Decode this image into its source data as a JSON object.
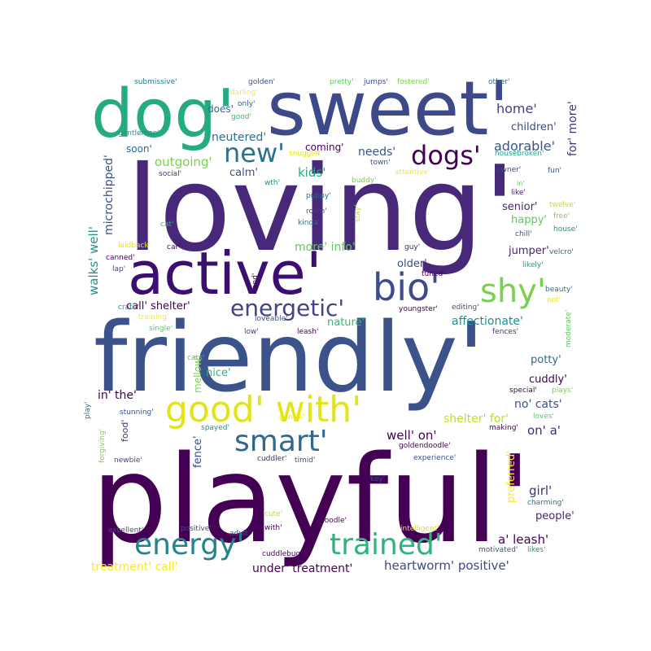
{
  "words": [
    {
      "text": "playful'",
      "color": "#440154"
    },
    {
      "text": "friendly'",
      "color": "#3b528b"
    },
    {
      "text": "loving'",
      "color": "#482878"
    },
    {
      "text": "sweet'",
      "color": "#3e4989"
    },
    {
      "text": "dog'",
      "color": "#25ab82"
    },
    {
      "text": "active'",
      "color": "#3b0f70"
    },
    {
      "text": "bio'",
      "color": "#3e4a89"
    },
    {
      "text": "shy'",
      "color": "#7ad151"
    },
    {
      "text": "good' with'",
      "color": "#e3e418"
    },
    {
      "text": "smart'",
      "color": "#31688e"
    },
    {
      "text": "energy'",
      "color": "#26828e"
    },
    {
      "text": "trained'",
      "color": "#2fb47c"
    },
    {
      "text": "energetic'",
      "color": "#414487"
    },
    {
      "text": "new'",
      "color": "#2c728e"
    },
    {
      "text": "dogs'",
      "color": "#440154"
    },
    {
      "text": "adorable'",
      "color": "#3b528b"
    },
    {
      "text": "home'",
      "color": "#424086"
    },
    {
      "text": "for' more'",
      "color": "#46327e"
    },
    {
      "text": "children'",
      "color": "#3e4989"
    },
    {
      "text": "outgoing'",
      "color": "#7ad151"
    },
    {
      "text": "neutered'",
      "color": "#2c728e"
    },
    {
      "text": "coming'",
      "color": "#440154"
    },
    {
      "text": "needs'",
      "color": "#3b528b"
    },
    {
      "text": "soon'",
      "color": "#31688e"
    },
    {
      "text": "calm'",
      "color": "#3b528b"
    },
    {
      "text": "kids'",
      "color": "#25ab82"
    },
    {
      "text": "senior'",
      "color": "#482475"
    },
    {
      "text": "happy'",
      "color": "#5ec962"
    },
    {
      "text": "microchipped'",
      "color": "#3b528b"
    },
    {
      "text": "walks' well'",
      "color": "#21918c"
    },
    {
      "text": "more' info'",
      "color": "#5ec962"
    },
    {
      "text": "older'",
      "color": "#3e4989"
    },
    {
      "text": "jumper'",
      "color": "#481f70"
    },
    {
      "text": "call' shelter'",
      "color": "#440154"
    },
    {
      "text": "affectionate'",
      "color": "#218f8d"
    },
    {
      "text": "nature'",
      "color": "#35b779"
    },
    {
      "text": "mellow'",
      "color": "#7ad151"
    },
    {
      "text": "nice'",
      "color": "#2fb47c"
    },
    {
      "text": "potty'",
      "color": "#31688e"
    },
    {
      "text": "cuddly'",
      "color": "#440154"
    },
    {
      "text": "in' the'",
      "color": "#440154"
    },
    {
      "text": "no' cats'",
      "color": "#3b528b"
    },
    {
      "text": "shelter' for'",
      "color": "#bddf26"
    },
    {
      "text": "on' a'",
      "color": "#482878"
    },
    {
      "text": "well' on'",
      "color": "#440154"
    },
    {
      "text": "fence'",
      "color": "#3e4989"
    },
    {
      "text": "food'",
      "color": "#46327e"
    },
    {
      "text": "preferred'",
      "color": "#fde725"
    },
    {
      "text": "girl'",
      "color": "#472d7b"
    },
    {
      "text": "people'",
      "color": "#482475"
    },
    {
      "text": "a' leash'",
      "color": "#440154"
    },
    {
      "text": "heartworm' positive'",
      "color": "#3e4989"
    },
    {
      "text": "treatment' call'",
      "color": "#fde725"
    },
    {
      "text": "under' treatment'",
      "color": "#440154"
    },
    {
      "text": "submissive'",
      "color": "#2c728e"
    },
    {
      "text": "golden'",
      "color": "#3b528b"
    },
    {
      "text": "pretty'",
      "color": "#5ec962"
    },
    {
      "text": "jumps'",
      "color": "#3e4989"
    },
    {
      "text": "fostered'",
      "color": "#7ad151"
    },
    {
      "text": "other'",
      "color": "#31688e"
    },
    {
      "text": "darling'",
      "color": "#fde725"
    },
    {
      "text": "only'",
      "color": "#3b528b"
    },
    {
      "text": "does'",
      "color": "#31688e"
    },
    {
      "text": "good'",
      "color": "#35b779"
    },
    {
      "text": "gentleman'",
      "color": "#21918c"
    },
    {
      "text": "snuggler'",
      "color": "#e5e419"
    },
    {
      "text": "housebroken'",
      "color": "#1fa187"
    },
    {
      "text": "town'",
      "color": "#3b528b"
    },
    {
      "text": "social'",
      "color": "#46327e"
    },
    {
      "text": "wth'",
      "color": "#21918c"
    },
    {
      "text": "buddy'",
      "color": "#7ad151"
    },
    {
      "text": "attentive'",
      "color": "#fde725"
    },
    {
      "text": "owner'",
      "color": "#3e4989"
    },
    {
      "text": "fun'",
      "color": "#3b528b"
    },
    {
      "text": "in'",
      "color": "#5ec962"
    },
    {
      "text": "like'",
      "color": "#481f70"
    },
    {
      "text": "puppy'",
      "color": "#31688e"
    },
    {
      "text": "stay'",
      "color": "#c8e020"
    },
    {
      "text": "twelve'",
      "color": "#bddf26"
    },
    {
      "text": "free'",
      "color": "#7ad151"
    },
    {
      "text": "room'",
      "color": "#3e4989"
    },
    {
      "text": "kinda'",
      "color": "#2c728e"
    },
    {
      "text": "cat'",
      "color": "#35b779"
    },
    {
      "text": "chill'",
      "color": "#3b528b"
    },
    {
      "text": "house'",
      "color": "#21918c"
    },
    {
      "text": "laidback'",
      "color": "#e5e419"
    },
    {
      "text": "car'",
      "color": "#440154"
    },
    {
      "text": "guy'",
      "color": "#482475"
    },
    {
      "text": "canned'",
      "color": "#440154"
    },
    {
      "text": "velcro'",
      "color": "#2c728e"
    },
    {
      "text": "lap'",
      "color": "#3e4989"
    },
    {
      "text": "tuned'",
      "color": "#440154"
    },
    {
      "text": "likely'",
      "color": "#21918c"
    },
    {
      "text": "and'",
      "color": "#440154"
    },
    {
      "text": "beauty'",
      "color": "#2c728e"
    },
    {
      "text": "crate'",
      "color": "#21918c"
    },
    {
      "text": "youngster'",
      "color": "#440154"
    },
    {
      "text": "editing'",
      "color": "#3b528b"
    },
    {
      "text": "not'",
      "color": "#e5e419"
    },
    {
      "text": "training'",
      "color": "#fde725"
    },
    {
      "text": "single'",
      "color": "#5ec962"
    },
    {
      "text": "loveable'",
      "color": "#3b528b"
    },
    {
      "text": "low'",
      "color": "#3e4989"
    },
    {
      "text": "leash'",
      "color": "#440154"
    },
    {
      "text": "fences'",
      "color": "#46327e"
    },
    {
      "text": "moderate'",
      "color": "#5ec962"
    },
    {
      "text": "cats'",
      "color": "#5ec962"
    },
    {
      "text": "special'",
      "color": "#440154"
    },
    {
      "text": "plays'",
      "color": "#7ad151"
    },
    {
      "text": "play'",
      "color": "#2c728e"
    },
    {
      "text": "stunning'",
      "color": "#3b528b"
    },
    {
      "text": "gentle'",
      "color": "#e5e419"
    },
    {
      "text": "making'",
      "color": "#440154"
    },
    {
      "text": "loves'",
      "color": "#5ec962"
    },
    {
      "text": "forgiving'",
      "color": "#7ad151"
    },
    {
      "text": "spayed'",
      "color": "#21918c"
    },
    {
      "text": "goldendoodle'",
      "color": "#440154"
    },
    {
      "text": "newbie'",
      "color": "#3e4989"
    },
    {
      "text": "cuddler'",
      "color": "#482878"
    },
    {
      "text": "timid'",
      "color": "#3b528b"
    },
    {
      "text": "experience'",
      "color": "#3b528b"
    },
    {
      "text": "key'",
      "color": "#3e4989"
    },
    {
      "text": "charming'",
      "color": "#2c728e"
    },
    {
      "text": "cute'",
      "color": "#bddf26"
    },
    {
      "text": "doodle'",
      "color": "#440154"
    },
    {
      "text": "excellent'",
      "color": "#3e4989"
    },
    {
      "text": "positive'",
      "color": "#3e4989"
    },
    {
      "text": "adult'",
      "color": "#3e4989"
    },
    {
      "text": "with'",
      "color": "#440154"
    },
    {
      "text": "intelligent'",
      "color": "#e5e419"
    },
    {
      "text": "motivated'",
      "color": "#3b528b"
    },
    {
      "text": "likes'",
      "color": "#21918c"
    },
    {
      "text": "cuddlebug'",
      "color": "#440154"
    }
  ]
}
